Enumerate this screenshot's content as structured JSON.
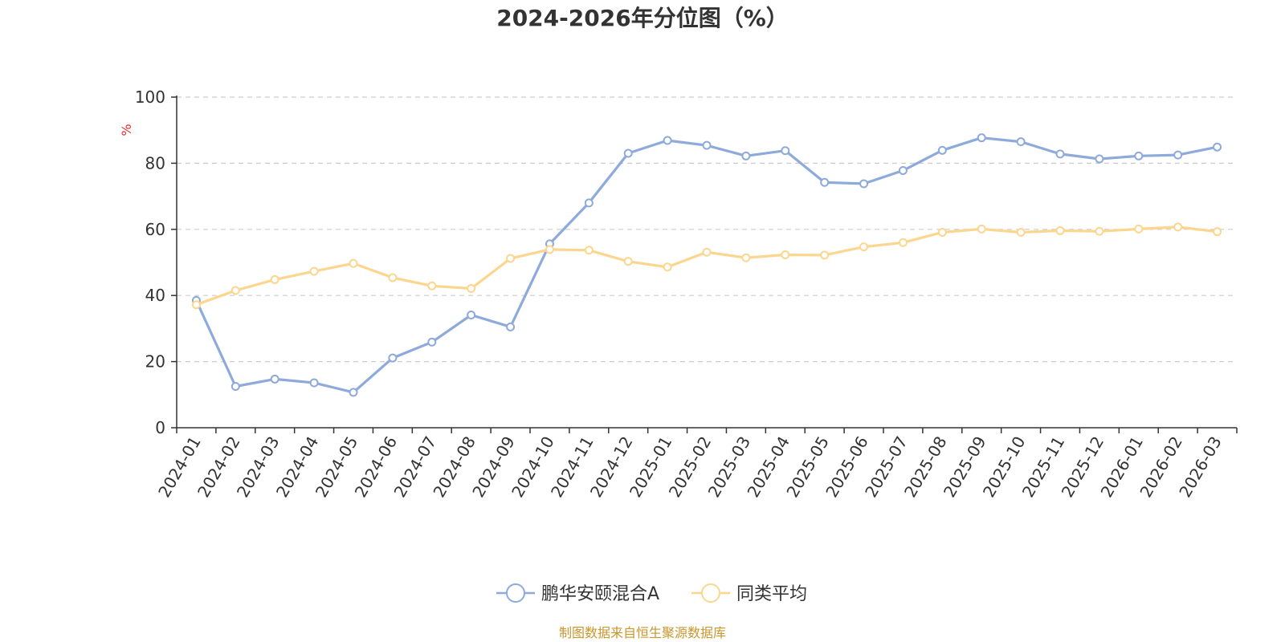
{
  "chart_data": {
    "type": "line",
    "title": "2024-2026年分位图（%）",
    "ylabel": "%",
    "ylim": [
      0,
      100
    ],
    "yticks": [
      0,
      20,
      40,
      60,
      80,
      100
    ],
    "grid": true,
    "legend_position": "bottom",
    "categories": [
      "2024-01",
      "2024-02",
      "2024-03",
      "2024-04",
      "2024-05",
      "2024-06",
      "2024-07",
      "2024-08",
      "2024-09",
      "2024-10",
      "2024-11",
      "2024-12",
      "2025-01",
      "2025-02",
      "2025-03",
      "2025-04",
      "2025-05",
      "2025-06",
      "2025-07",
      "2025-08",
      "2025-09",
      "2025-10",
      "2025-11",
      "2025-12",
      "2026-01",
      "2026-02",
      "2026-03"
    ],
    "series": [
      {
        "name": "鹏华安颐混合A",
        "color": "#8eaadb",
        "values": [
          38.5,
          12.5,
          14.7,
          13.6,
          10.7,
          21.1,
          25.9,
          34.1,
          30.5,
          55.6,
          68.0,
          83.0,
          86.9,
          85.4,
          82.2,
          83.8,
          74.2,
          73.8,
          77.8,
          83.9,
          87.7,
          86.5,
          82.8,
          81.3,
          82.2,
          82.5,
          84.9
        ]
      },
      {
        "name": "同类平均",
        "color": "#fcd68f",
        "values": [
          37.2,
          41.5,
          44.8,
          47.3,
          49.7,
          45.4,
          42.9,
          42.1,
          51.2,
          53.9,
          53.7,
          50.3,
          48.6,
          53.1,
          51.4,
          52.3,
          52.2,
          54.7,
          56.0,
          59.1,
          60.1,
          59.1,
          59.6,
          59.4,
          60.1,
          60.7,
          59.3
        ]
      }
    ]
  },
  "source": "制图数据来自恒生聚源数据库",
  "colors": {
    "axis": "#333333",
    "grid": "#cccccc",
    "unit": "#e0302b",
    "source": "#c8962a"
  }
}
